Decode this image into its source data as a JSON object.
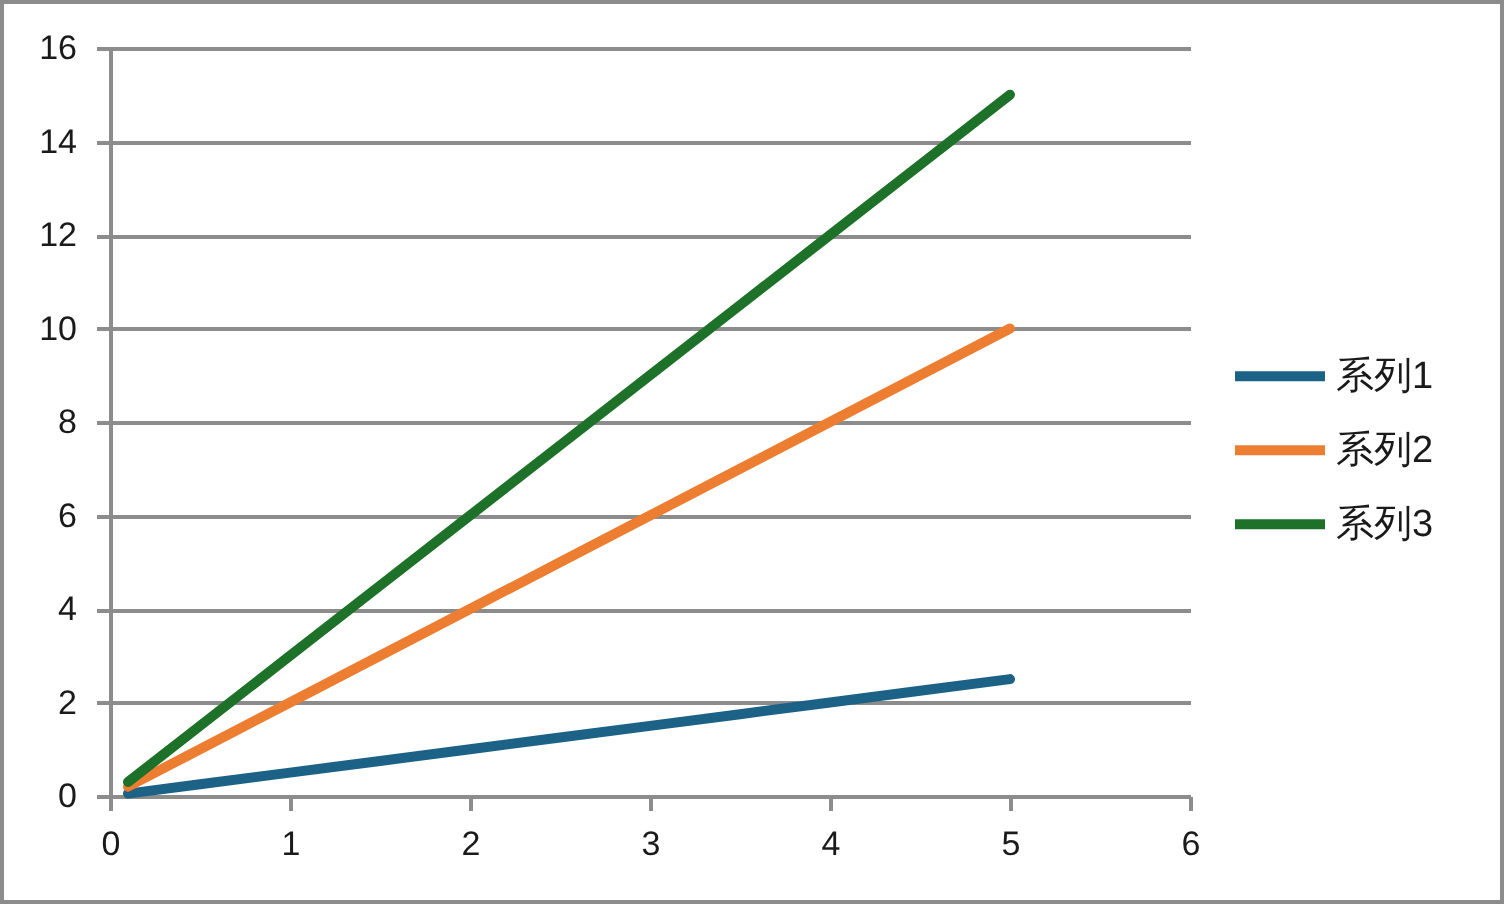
{
  "chart_data": {
    "type": "line",
    "x": [
      0.1,
      0.5,
      1,
      1.5,
      2,
      2.5,
      3,
      3.5,
      4,
      4.5,
      5
    ],
    "series": [
      {
        "name": "系列1",
        "color": "#1b6286",
        "values": [
          0.05,
          0.25,
          0.5,
          0.75,
          1.0,
          1.25,
          1.5,
          1.75,
          2.0,
          2.25,
          2.5
        ]
      },
      {
        "name": "系列2",
        "color": "#ed7d31",
        "values": [
          0.2,
          1.0,
          2.0,
          3.0,
          4.0,
          5.0,
          6.0,
          7.0,
          8.0,
          9.0,
          10.0
        ]
      },
      {
        "name": "系列3",
        "color": "#1e7128",
        "values": [
          0.3,
          1.5,
          3.0,
          4.5,
          6.0,
          7.5,
          9.0,
          10.5,
          12.0,
          13.5,
          15.0
        ]
      }
    ],
    "xlim": [
      0,
      6
    ],
    "xticks": [
      0,
      1,
      2,
      3,
      4,
      5,
      6
    ],
    "ylim": [
      0,
      16
    ],
    "yticks": [
      0,
      2,
      4,
      6,
      8,
      10,
      12,
      14,
      16
    ],
    "grid": "y",
    "legend": "right",
    "marker": "none",
    "line_style": "solid"
  }
}
